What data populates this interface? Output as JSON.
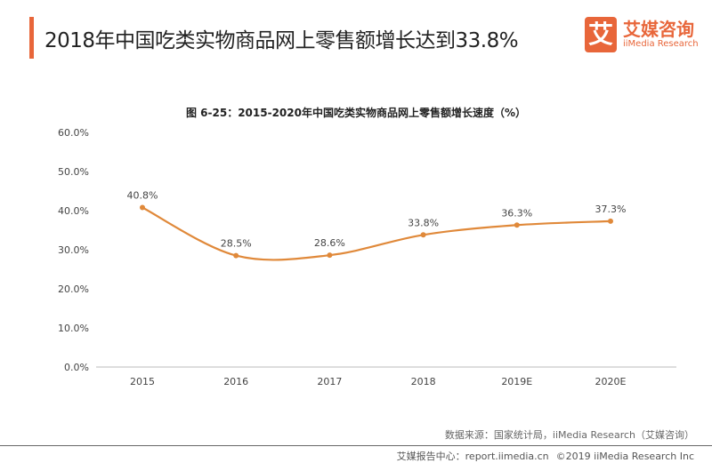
{
  "header": {
    "title": "2018年中国吃类实物商品网上零售额增长达到33.8%",
    "logo_mark": "艾",
    "logo_cn": "艾媒咨询",
    "logo_en": "iiMedia Research"
  },
  "chart_data": {
    "type": "line",
    "title": "图 6-25：2015-2020年中国吃类实物商品网上零售额增长速度（%）",
    "categories": [
      "2015",
      "2016",
      "2017",
      "2018",
      "2019E",
      "2020E"
    ],
    "values": [
      40.8,
      28.5,
      28.6,
      33.8,
      36.3,
      37.3
    ],
    "data_labels": [
      "40.8%",
      "28.5%",
      "28.6%",
      "33.8%",
      "36.3%",
      "37.3%"
    ],
    "ylim": [
      0,
      60
    ],
    "yticks": [
      "0.0%",
      "10.0%",
      "20.0%",
      "30.0%",
      "40.0%",
      "50.0%",
      "60.0%"
    ],
    "xlabel": "",
    "ylabel": "",
    "grid": false,
    "color": "#e0893a"
  },
  "footer": {
    "source": "数据来源：国家统计局，iiMedia Research（艾媒咨询）",
    "report_center": "艾媒报告中心：report.iimedia.cn",
    "copyright": "©2019  iiMedia Research  Inc"
  }
}
